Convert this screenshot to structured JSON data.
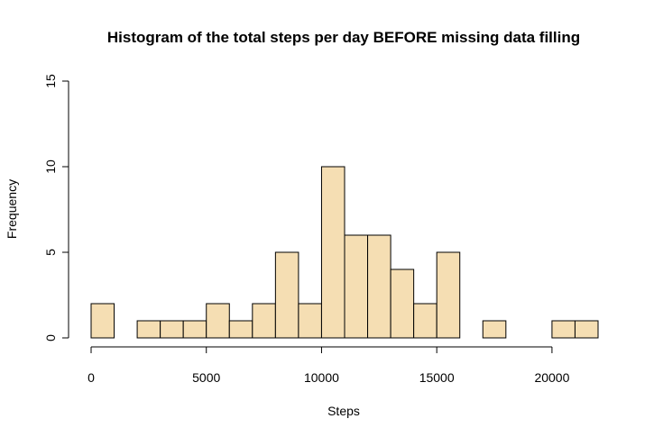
{
  "chart_data": {
    "type": "bar",
    "title": "Histogram of the total steps per day BEFORE missing data filling",
    "xlabel": "Steps",
    "ylabel": "Frequency",
    "bar_color": "#f5deb3",
    "edge_color": "#000000",
    "xlim": [
      0,
      22000
    ],
    "ylim": [
      0,
      15
    ],
    "xticks": [
      0,
      5000,
      10000,
      15000,
      20000
    ],
    "yticks": [
      0,
      5,
      10,
      15
    ],
    "bin_width": 1000,
    "bins": [
      {
        "from": 0,
        "to": 1000,
        "count": 2
      },
      {
        "from": 1000,
        "to": 2000,
        "count": 0
      },
      {
        "from": 2000,
        "to": 3000,
        "count": 1
      },
      {
        "from": 3000,
        "to": 4000,
        "count": 1
      },
      {
        "from": 4000,
        "to": 5000,
        "count": 1
      },
      {
        "from": 5000,
        "to": 6000,
        "count": 2
      },
      {
        "from": 6000,
        "to": 7000,
        "count": 1
      },
      {
        "from": 7000,
        "to": 8000,
        "count": 2
      },
      {
        "from": 8000,
        "to": 9000,
        "count": 5
      },
      {
        "from": 9000,
        "to": 10000,
        "count": 2
      },
      {
        "from": 10000,
        "to": 11000,
        "count": 10
      },
      {
        "from": 11000,
        "to": 12000,
        "count": 6
      },
      {
        "from": 12000,
        "to": 13000,
        "count": 6
      },
      {
        "from": 13000,
        "to": 14000,
        "count": 4
      },
      {
        "from": 14000,
        "to": 15000,
        "count": 2
      },
      {
        "from": 15000,
        "to": 16000,
        "count": 5
      },
      {
        "from": 16000,
        "to": 17000,
        "count": 0
      },
      {
        "from": 17000,
        "to": 18000,
        "count": 1
      },
      {
        "from": 18000,
        "to": 19000,
        "count": 0
      },
      {
        "from": 19000,
        "to": 20000,
        "count": 0
      },
      {
        "from": 20000,
        "to": 21000,
        "count": 1
      },
      {
        "from": 21000,
        "to": 22000,
        "count": 1
      }
    ]
  }
}
